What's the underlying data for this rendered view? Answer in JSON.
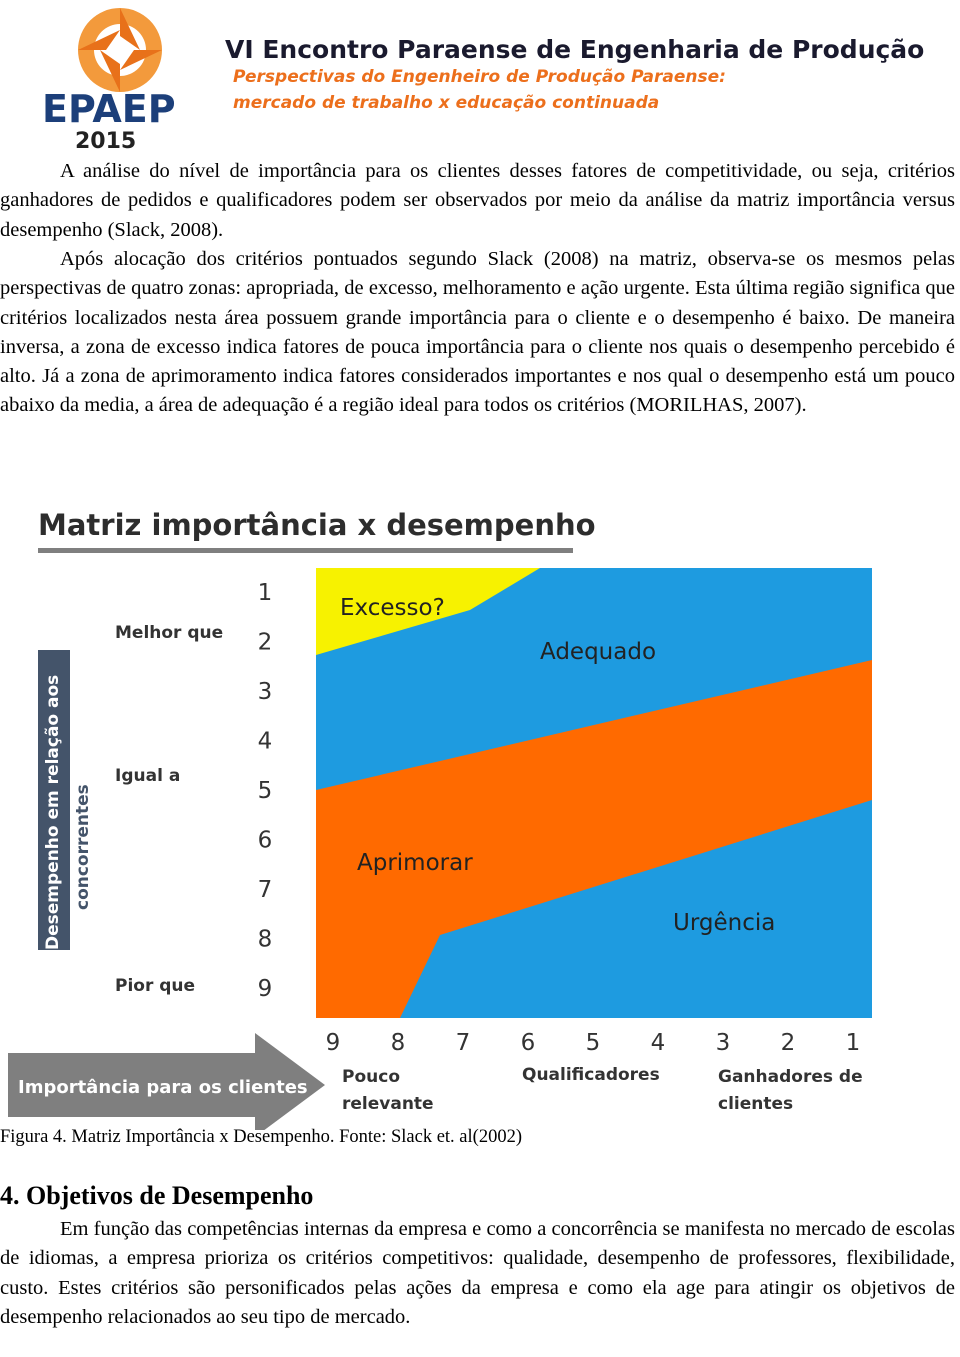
{
  "header": {
    "logo": "EPAEP",
    "year": "2015",
    "title": "VI Encontro Paraense de Engenharia de Produção",
    "subtitle": [
      "Perspectivas do Engenheiro de Produção Paraense:",
      "mercado de trabalho x educação continuada"
    ]
  },
  "paragraphs": [
    "A análise do nível de importância para os clientes desses fatores de competitividade, ou seja, critérios ganhadores de pedidos e qualificadores podem ser observados por meio da análise da matriz importância versus desempenho (Slack, 2008).",
    "Após alocação dos critérios pontuados segundo Slack (2008) na matriz, observa-se os mesmos pelas perspectivas de quatro zonas: apropriada, de excesso, melhoramento e ação urgente. Esta última região significa que critérios localizados nesta área possuem grande importância para o cliente e o desempenho é baixo. De maneira inversa, a zona de excesso indica fatores de pouca importância para o cliente nos quais o desempenho percebido é alto. Já a zona de aprimoramento indica fatores considerados importantes e nos qual o desempenho está um pouco abaixo da media, a área de adequação é a região ideal para todos os critérios (MORILHAS, 2007)."
  ],
  "figure": {
    "title": "Matriz importância x desempenho",
    "y_axis_title": [
      "Desempenho em relação aos",
      "concorrentes"
    ],
    "y_labels": [
      "Melhor que",
      "Igual a",
      "Pior que"
    ],
    "y_numbers": [
      "1",
      "2",
      "3",
      "4",
      "5",
      "6",
      "7",
      "8",
      "9"
    ],
    "x_numbers": [
      "9",
      "8",
      "7",
      "6",
      "5",
      "4",
      "3",
      "2",
      "1"
    ],
    "x_axis_title": "Importância para os clientes",
    "x_labels": [
      [
        "Pouco",
        "relevante"
      ],
      [
        "Qualificadores"
      ],
      [
        "Ganhadores de",
        "clientes"
      ]
    ],
    "zones": [
      "Excesso?",
      "Adequado",
      "Aprimorar",
      "Urgência"
    ],
    "caption": "Figura 4. Matriz Importância x Desempenho.  Fonte: Slack et. al(2002)"
  },
  "section": {
    "heading": "4. Objetivos de Desempenho",
    "paragraph": "Em função das competências internas da empresa e como a concorrência se manifesta no mercado de escolas de idiomas, a empresa prioriza os critérios competitivos: qualidade, desempenho de professores, flexibilidade, custo. Estes critérios são personificados pelas ações da empresa e como ela age para atingir os objetivos de desempenho relacionados ao seu tipo de mercado."
  }
}
